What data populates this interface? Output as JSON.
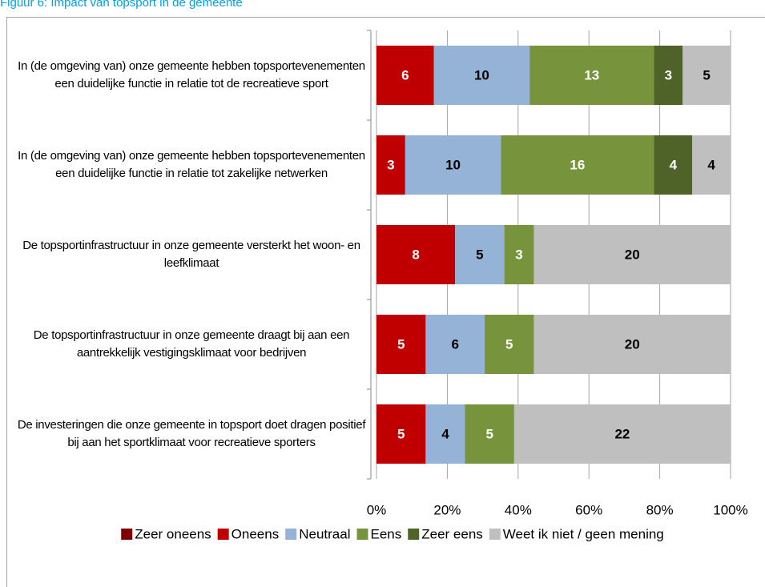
{
  "chart_data": {
    "type": "stacked_bar_100_horizontal",
    "title": "Figuur 6: Impact van topsport in de gemeente",
    "categories": [
      "In (de omgeving van) onze gemeente hebben topsportevenementen een duidelijke functie in relatie tot de recreatieve sport",
      "In (de omgeving van) onze gemeente hebben topsportevenementen een duidelijke functie in relatie tot zakelijke netwerken",
      "De topsportinfrastructuur in onze gemeente versterkt het woon- en leefklimaat",
      "De topsportinfrastructuur in onze gemeente draagt bij aan een aantrekkelijk vestigingsklimaat voor bedrijven",
      "De investeringen die onze gemeente in topsport doet dragen positief bij aan het sportklimaat voor recreatieve sporters"
    ],
    "series": [
      {
        "name": "Zeer oneens",
        "color": "#7f0000",
        "label_color": "#ffffff",
        "values": [
          0,
          0,
          0,
          0,
          0
        ]
      },
      {
        "name": "Oneens",
        "color": "#c00000",
        "label_color": "#ffffff",
        "values": [
          6,
          3,
          8,
          5,
          5
        ]
      },
      {
        "name": "Neutraal",
        "color": "#95b3d7",
        "label_color": "#000000",
        "values": [
          10,
          10,
          5,
          6,
          4
        ]
      },
      {
        "name": "Eens",
        "color": "#77933c",
        "label_color": "#ffffff",
        "values": [
          13,
          16,
          3,
          5,
          5
        ]
      },
      {
        "name": "Zeer eens",
        "color": "#4f6228",
        "label_color": "#ffffff",
        "values": [
          3,
          4,
          0,
          0,
          0
        ]
      },
      {
        "name": "Weet ik niet / geen mening",
        "color": "#bfbfbf",
        "label_color": "#000000",
        "values": [
          5,
          4,
          20,
          20,
          22
        ]
      }
    ],
    "xlim": [
      0,
      100
    ],
    "xticks": [
      {
        "value": 0,
        "label": "0%"
      },
      {
        "value": 20,
        "label": "20%"
      },
      {
        "value": 40,
        "label": "40%"
      },
      {
        "value": 60,
        "label": "60%"
      },
      {
        "value": 80,
        "label": "80%"
      },
      {
        "value": 100,
        "label": "100%"
      }
    ],
    "grid": true,
    "legend": "bottom"
  }
}
